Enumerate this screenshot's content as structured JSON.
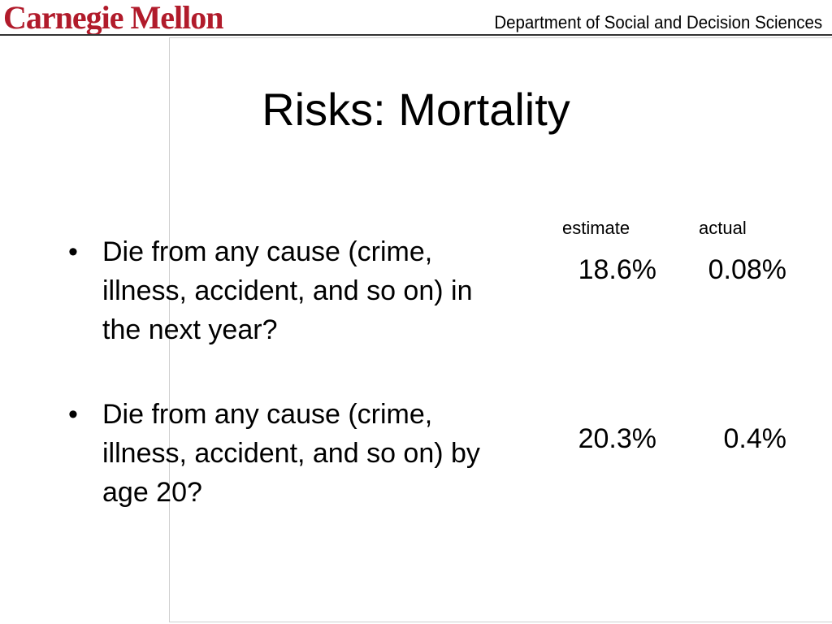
{
  "header": {
    "logo_text": "Carnegie Mellon",
    "department": "Department of Social and Decision Sciences"
  },
  "slide": {
    "title": "Risks: Mortality",
    "columns": {
      "estimate": "estimate",
      "actual": "actual"
    },
    "bullet_symbol": "•",
    "items": [
      {
        "text": "Die from any cause (crime, illness, accident, and so on) in the next year?",
        "estimate": "18.6%",
        "actual": "0.08%"
      },
      {
        "text": "Die from any cause (crime, illness, accident, and so on) by age 20?",
        "estimate": "20.3%",
        "actual": "0.4%"
      }
    ]
  },
  "colors": {
    "logo": "#b11b2b",
    "text": "#000000",
    "rule": "#333333",
    "frame": "#cfcfcf"
  }
}
